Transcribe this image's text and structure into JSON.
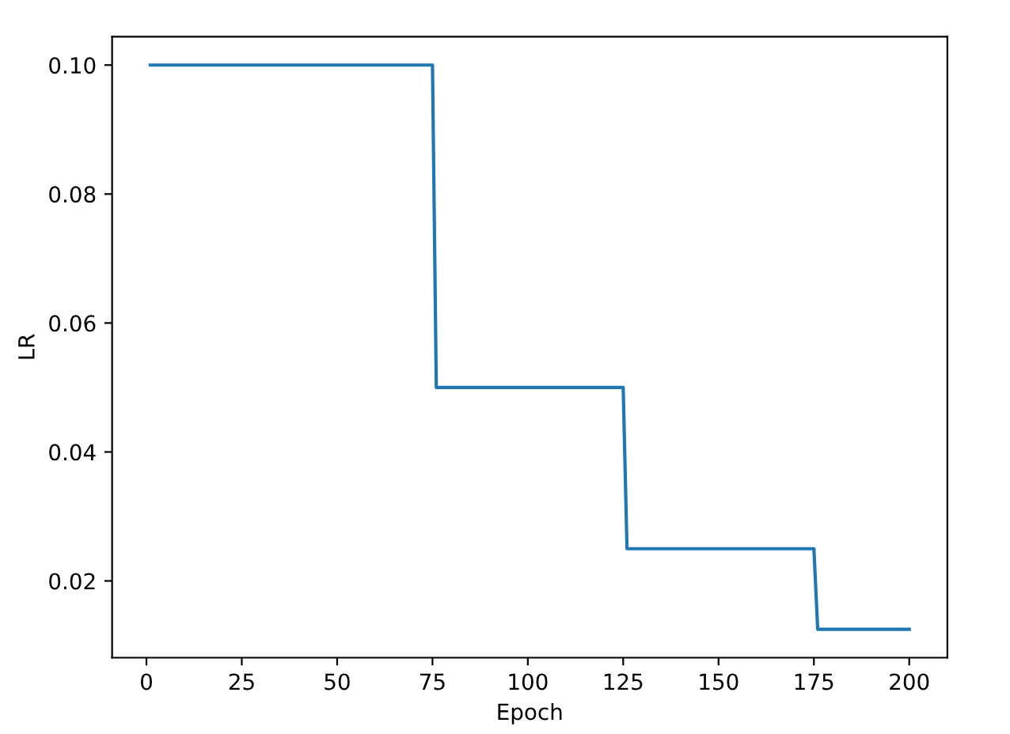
{
  "chart_data": {
    "type": "line",
    "xlabel": "Epoch",
    "ylabel": "LR",
    "series": [
      {
        "color": "#1f77b4",
        "x": [
          1,
          75,
          76,
          125,
          126,
          175,
          176,
          200
        ],
        "values": [
          0.1,
          0.1,
          0.05,
          0.05,
          0.025,
          0.025,
          0.0125,
          0.0125
        ]
      }
    ],
    "xlim": [
      -9,
      210
    ],
    "xticks": [
      0,
      25,
      50,
      75,
      100,
      125,
      150,
      175,
      200
    ],
    "ylim": [
      0.0081,
      0.1044
    ],
    "yticks": [
      0.02,
      0.04,
      0.06,
      0.08,
      {
        "value": 0.1,
        "label": "0.10"
      }
    ],
    "grid": false,
    "marker": "none",
    "line_style": "solid"
  }
}
